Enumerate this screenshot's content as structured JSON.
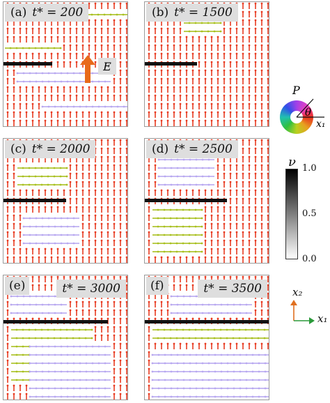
{
  "panels": [
    {
      "id": "a",
      "tag": "(a)",
      "time": "t* = 200",
      "label_side": "left"
    },
    {
      "id": "b",
      "tag": "(b)",
      "time": "t* = 1500",
      "label_side": "left"
    },
    {
      "id": "c",
      "tag": "(c)",
      "time": "t* = 2000",
      "label_side": "left"
    },
    {
      "id": "d",
      "tag": "(d)",
      "time": "t* = 2500",
      "label_side": "left"
    },
    {
      "id": "e",
      "tag": "(e)",
      "time": "t* = 3000",
      "label_side": "right"
    },
    {
      "id": "f",
      "tag": "(f)",
      "time": "t* = 3500",
      "label_side": "right"
    }
  ],
  "field_arrow_label": "E",
  "polarization_wheel": {
    "label": "P",
    "angle_label": "θ",
    "axis_label": "x₁"
  },
  "colorbar": {
    "label": "ν",
    "ticks": [
      "1.0",
      "0.5",
      "0.0"
    ]
  },
  "axes": {
    "x2": "x₂",
    "x1": "x₁",
    "x2_color": "#e07020",
    "x1_color": "#2a9a3a"
  },
  "colors": {
    "up": "#e83a20",
    "right": "#a8c020",
    "left": "#b8a8f0",
    "field_arrow": "#e86a1a"
  }
}
